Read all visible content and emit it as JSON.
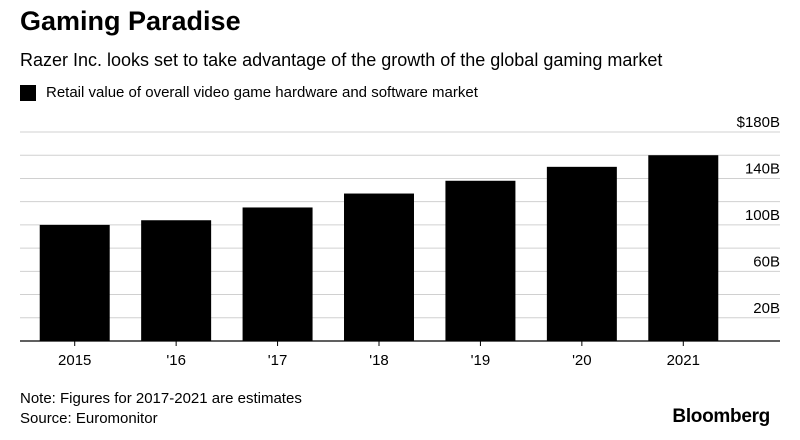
{
  "header": {
    "title": "Gaming Paradise",
    "subtitle": "Razer Inc. looks set to take advantage of the growth of the global gaming market"
  },
  "legend": {
    "label": "Retail value of overall video game hardware and software market",
    "color": "#000000"
  },
  "footer": {
    "note": "Note: Figures for 2017-2021 are estimates",
    "source": "Source: Euromonitor",
    "brand": "Bloomberg"
  },
  "chart_data": {
    "type": "bar",
    "categories": [
      "2015",
      "'16",
      "'17",
      "'18",
      "'19",
      "'20",
      "2021"
    ],
    "series": [
      {
        "name": "Retail value of overall video game hardware and software market",
        "values": [
          100,
          104,
          115,
          127,
          138,
          150,
          160
        ]
      }
    ],
    "ylim": [
      0,
      180
    ],
    "yticks": [
      20,
      60,
      100,
      140,
      180
    ],
    "ytick_labels": [
      "20B",
      "60B",
      "100B",
      "140B",
      "$180B"
    ],
    "gridlines": [
      20,
      40,
      60,
      80,
      100,
      120,
      140,
      160,
      180
    ],
    "grid": true,
    "bar_color": "#000000",
    "axis_position": "right"
  }
}
